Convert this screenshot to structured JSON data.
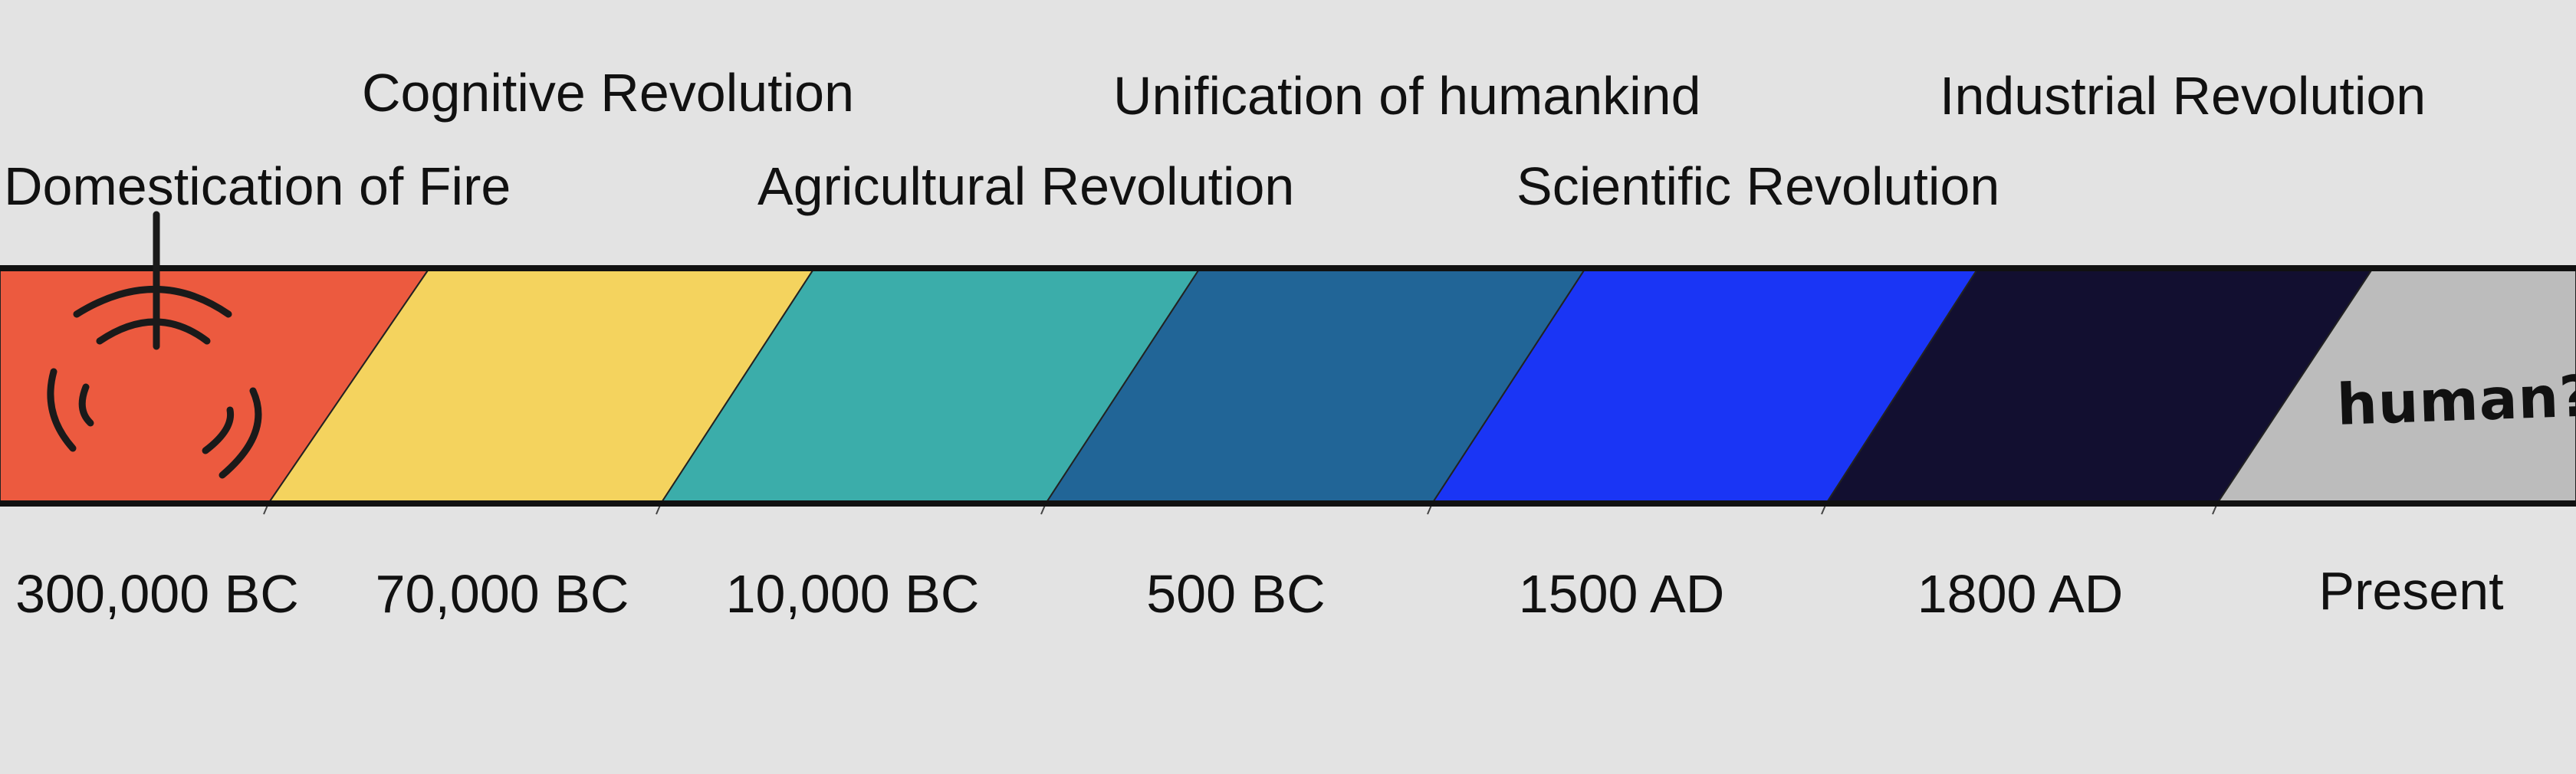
{
  "eras": [
    {
      "event": "Domestication of Fire",
      "date": "300,000 BC",
      "color": "#ec5a3f"
    },
    {
      "event": "Cognitive Revolution",
      "date": "70,000 BC",
      "color": "#f4d35e"
    },
    {
      "event": "Agricultural Revolution",
      "date": "10,000 BC",
      "color": "#3badaa"
    },
    {
      "event": "Unification of humankind",
      "date": "500 BC",
      "color": "#216597"
    },
    {
      "event": "Scientific Revolution",
      "date": "1500 AD",
      "color": "#1a35f5"
    },
    {
      "event": "Industrial Revolution",
      "date": "1800 AD",
      "color": "#120f30"
    },
    {
      "event": "",
      "date": "Present",
      "color": "#bcbcbc"
    }
  ],
  "present_note": "human?",
  "fire_icon": "fire-icon",
  "band_outline_color": "#111111",
  "background_color": "#e3e3e3"
}
